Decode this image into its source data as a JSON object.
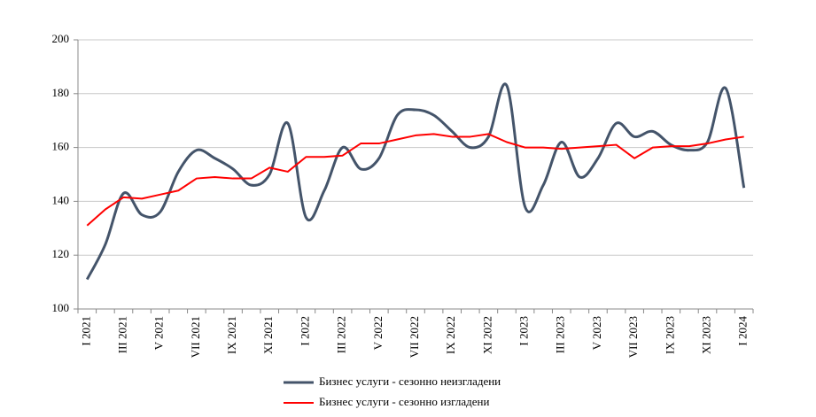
{
  "chart_data": {
    "type": "line",
    "categories": [
      "I 2021",
      null,
      "III 2021",
      null,
      "V 2021",
      null,
      "VII 2021",
      null,
      "IX 2021",
      null,
      "XI 2021",
      null,
      "I 2022",
      null,
      "III 2022",
      null,
      "V 2022",
      null,
      "VII 2022",
      null,
      "IX 2022",
      null,
      "XI 2022",
      null,
      "I 2023",
      null,
      "III 2023",
      null,
      "V 2023",
      null,
      "VII 2023",
      null,
      "IX 2023",
      null,
      "XI 2023",
      null,
      "I 2024"
    ],
    "series": [
      {
        "name": "Бизнес услуги   - сезонно неизгладени",
        "color": "#44546a",
        "smooth": true,
        "values": [
          111,
          124,
          143,
          135,
          136,
          151,
          159,
          156,
          152,
          146,
          150,
          169,
          134,
          144,
          160,
          152,
          156,
          172,
          174,
          172,
          166,
          160,
          164,
          183,
          138,
          146,
          162,
          149,
          156,
          169,
          164,
          166,
          161,
          159,
          162,
          182,
          145
        ]
      },
      {
        "name": "Бизнес услуги   - сезонно изгладени",
        "color": "#ff0000",
        "smooth": false,
        "values": [
          131,
          137,
          141.5,
          141,
          142.5,
          144,
          148.5,
          149,
          148.5,
          148.5,
          152.5,
          151,
          156.5,
          156.5,
          157,
          161.5,
          161.5,
          163,
          164.5,
          165,
          164,
          164,
          165,
          162,
          160,
          160,
          159.5,
          160,
          160.5,
          161,
          156,
          160,
          160.5,
          160.5,
          161.5,
          163,
          164
        ]
      }
    ],
    "ylim": [
      100,
      200
    ],
    "yticks": [
      100,
      120,
      140,
      160,
      180,
      200
    ],
    "grid": true,
    "legend": "bottom"
  }
}
